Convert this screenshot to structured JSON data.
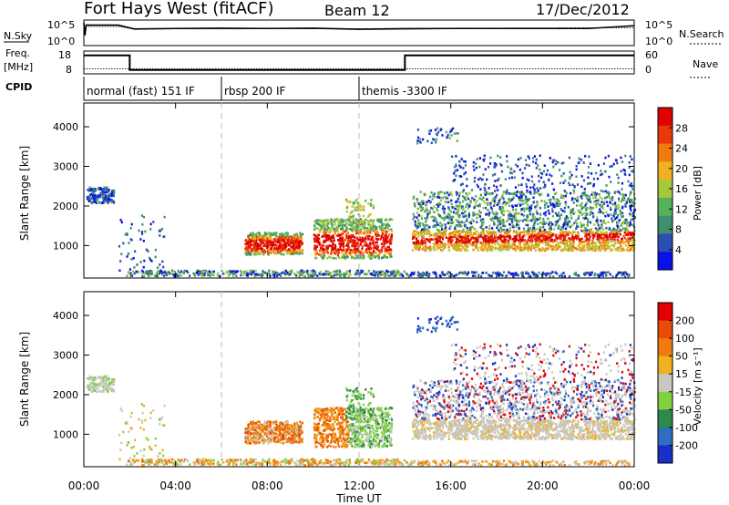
{
  "header": {
    "station": "Fort Hays West (fitACF)",
    "beam": "Beam 12",
    "date": "17/Dec/2012"
  },
  "left_labels": {
    "nsky": "N.Sky",
    "freq_top": "Freq.",
    "freq_unit": "[MHz]",
    "cpid": "CPID"
  },
  "right_labels": {
    "nsearch": "N.Search",
    "nave": "Nave"
  },
  "chart_data": [
    {
      "type": "line",
      "panel": "noise",
      "left_axis": {
        "label": "N.Sky",
        "ticks": [
          "10^5",
          "10^0"
        ],
        "scale": "log"
      },
      "right_axis": {
        "label": "N.Search",
        "ticks": [
          "10^5",
          "10^0"
        ],
        "scale": "log"
      },
      "series": [
        {
          "name": "N.Sky",
          "x_hours": [
            0,
            0.05,
            0.1,
            1.5,
            2.2,
            4,
            6,
            8,
            10,
            12,
            14,
            16,
            18,
            20,
            22,
            23.5,
            24
          ],
          "y_frac": [
            0.1,
            0.6,
            0.2,
            0.2,
            0.35,
            0.33,
            0.32,
            0.33,
            0.32,
            0.36,
            0.34,
            0.33,
            0.33,
            0.33,
            0.33,
            0.25,
            0.22
          ]
        },
        {
          "name": "N.Search",
          "x_hours": [
            0,
            0.1,
            1.5,
            2.2,
            12,
            14,
            24
          ],
          "y_frac": [
            0.15,
            0.25,
            0.25,
            0.35,
            0.34,
            0.32,
            0.3
          ]
        }
      ]
    },
    {
      "type": "line",
      "panel": "frequency",
      "left_axis": {
        "label": "Freq. [MHz]",
        "ticks": [
          "18",
          "8"
        ],
        "range": [
          8,
          18
        ]
      },
      "right_axis": {
        "label": "Nave",
        "ticks": [
          "60",
          "0"
        ],
        "range": [
          0,
          60
        ]
      },
      "series": [
        {
          "name": "Freq.",
          "x_hours": [
            0,
            2,
            2,
            14,
            14,
            24
          ],
          "y": [
            16.1,
            16.1,
            9.7,
            9.7,
            16.1,
            16.1
          ]
        },
        {
          "name": "Nave",
          "x_hours": [
            0,
            24
          ],
          "y": [
            13,
            13
          ]
        }
      ]
    },
    {
      "type": "table",
      "panel": "cpid",
      "segments": [
        {
          "label": "normal (fast) 151 IF",
          "start_hour": 0,
          "end_hour": 6
        },
        {
          "label": "rbsp 200 IF",
          "start_hour": 6,
          "end_hour": 12
        },
        {
          "label": "themis -3300 IF",
          "start_hour": 12,
          "end_hour": 24
        }
      ]
    },
    {
      "type": "heatmap",
      "panel": "power",
      "ylabel": "Slant Range [km]",
      "yticks": [
        1000,
        2000,
        3000,
        4000
      ],
      "ylim": [
        180,
        4600
      ],
      "colorbar": {
        "label": "Power [dB]",
        "ticks": [
          4,
          8,
          12,
          16,
          20,
          24,
          28
        ],
        "range": [
          0,
          32
        ]
      }
    },
    {
      "type": "heatmap",
      "panel": "velocity",
      "ylabel": "Slant Range [km]",
      "yticks": [
        1000,
        2000,
        3000,
        4000
      ],
      "ylim": [
        180,
        4600
      ],
      "colorbar": {
        "label": "Velocity [m s⁻¹]",
        "ticks": [
          200,
          100,
          50,
          15,
          -15,
          -50,
          -100,
          -200
        ]
      }
    }
  ],
  "x_axis": {
    "label": "Time UT",
    "ticks": [
      "00:00",
      "04:00",
      "08:00",
      "12:00",
      "16:00",
      "20:00",
      "00:00"
    ]
  },
  "colors": {
    "power_scale": [
      "#0a10e8",
      "#2a4fb0",
      "#3e8f6e",
      "#58b05a",
      "#a8c83c",
      "#f0b020",
      "#f07a10",
      "#e83a08",
      "#e00000"
    ],
    "velocity_scale": [
      "#1830c8",
      "#2e6ec0",
      "#2e8a4a",
      "#80d040",
      "#c8c8c0",
      "#f0b020",
      "#f07a10",
      "#e84a08",
      "#e00000"
    ]
  }
}
